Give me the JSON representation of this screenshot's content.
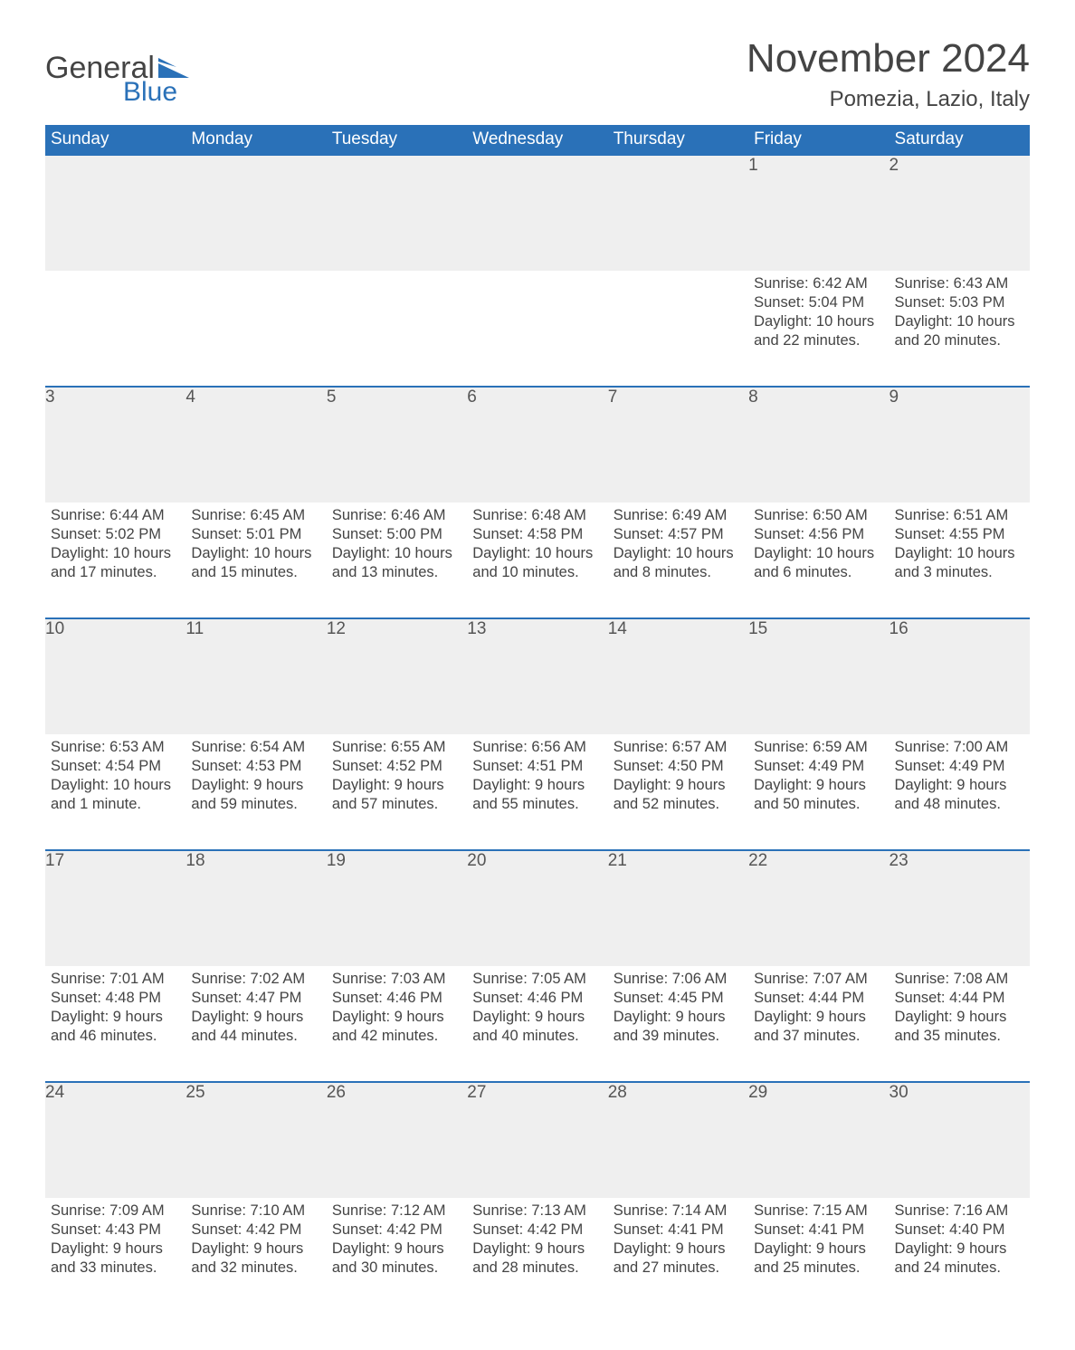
{
  "logo": {
    "part1": "General",
    "part2": "Blue"
  },
  "title": "November 2024",
  "location": "Pomezia, Lazio, Italy",
  "colors": {
    "header_bg": "#2a71b8",
    "header_fg": "#ffffff",
    "daynum_bg": "#efefef",
    "row_border": "#2a71b8",
    "text": "#444444",
    "logo_blue": "#2a71b8"
  },
  "typography": {
    "title_fontsize": 44,
    "location_fontsize": 24,
    "weekday_fontsize": 19,
    "daynum_fontsize": 19,
    "body_fontsize": 16.5
  },
  "calendar": {
    "type": "table",
    "columns": [
      "Sunday",
      "Monday",
      "Tuesday",
      "Wednesday",
      "Thursday",
      "Friday",
      "Saturday"
    ],
    "weeks": [
      [
        null,
        null,
        null,
        null,
        null,
        {
          "day": "1",
          "sunrise": "6:42 AM",
          "sunset": "5:04 PM",
          "daylight": "10 hours and 22 minutes."
        },
        {
          "day": "2",
          "sunrise": "6:43 AM",
          "sunset": "5:03 PM",
          "daylight": "10 hours and 20 minutes."
        }
      ],
      [
        {
          "day": "3",
          "sunrise": "6:44 AM",
          "sunset": "5:02 PM",
          "daylight": "10 hours and 17 minutes."
        },
        {
          "day": "4",
          "sunrise": "6:45 AM",
          "sunset": "5:01 PM",
          "daylight": "10 hours and 15 minutes."
        },
        {
          "day": "5",
          "sunrise": "6:46 AM",
          "sunset": "5:00 PM",
          "daylight": "10 hours and 13 minutes."
        },
        {
          "day": "6",
          "sunrise": "6:48 AM",
          "sunset": "4:58 PM",
          "daylight": "10 hours and 10 minutes."
        },
        {
          "day": "7",
          "sunrise": "6:49 AM",
          "sunset": "4:57 PM",
          "daylight": "10 hours and 8 minutes."
        },
        {
          "day": "8",
          "sunrise": "6:50 AM",
          "sunset": "4:56 PM",
          "daylight": "10 hours and 6 minutes."
        },
        {
          "day": "9",
          "sunrise": "6:51 AM",
          "sunset": "4:55 PM",
          "daylight": "10 hours and 3 minutes."
        }
      ],
      [
        {
          "day": "10",
          "sunrise": "6:53 AM",
          "sunset": "4:54 PM",
          "daylight": "10 hours and 1 minute."
        },
        {
          "day": "11",
          "sunrise": "6:54 AM",
          "sunset": "4:53 PM",
          "daylight": "9 hours and 59 minutes."
        },
        {
          "day": "12",
          "sunrise": "6:55 AM",
          "sunset": "4:52 PM",
          "daylight": "9 hours and 57 minutes."
        },
        {
          "day": "13",
          "sunrise": "6:56 AM",
          "sunset": "4:51 PM",
          "daylight": "9 hours and 55 minutes."
        },
        {
          "day": "14",
          "sunrise": "6:57 AM",
          "sunset": "4:50 PM",
          "daylight": "9 hours and 52 minutes."
        },
        {
          "day": "15",
          "sunrise": "6:59 AM",
          "sunset": "4:49 PM",
          "daylight": "9 hours and 50 minutes."
        },
        {
          "day": "16",
          "sunrise": "7:00 AM",
          "sunset": "4:49 PM",
          "daylight": "9 hours and 48 minutes."
        }
      ],
      [
        {
          "day": "17",
          "sunrise": "7:01 AM",
          "sunset": "4:48 PM",
          "daylight": "9 hours and 46 minutes."
        },
        {
          "day": "18",
          "sunrise": "7:02 AM",
          "sunset": "4:47 PM",
          "daylight": "9 hours and 44 minutes."
        },
        {
          "day": "19",
          "sunrise": "7:03 AM",
          "sunset": "4:46 PM",
          "daylight": "9 hours and 42 minutes."
        },
        {
          "day": "20",
          "sunrise": "7:05 AM",
          "sunset": "4:46 PM",
          "daylight": "9 hours and 40 minutes."
        },
        {
          "day": "21",
          "sunrise": "7:06 AM",
          "sunset": "4:45 PM",
          "daylight": "9 hours and 39 minutes."
        },
        {
          "day": "22",
          "sunrise": "7:07 AM",
          "sunset": "4:44 PM",
          "daylight": "9 hours and 37 minutes."
        },
        {
          "day": "23",
          "sunrise": "7:08 AM",
          "sunset": "4:44 PM",
          "daylight": "9 hours and 35 minutes."
        }
      ],
      [
        {
          "day": "24",
          "sunrise": "7:09 AM",
          "sunset": "4:43 PM",
          "daylight": "9 hours and 33 minutes."
        },
        {
          "day": "25",
          "sunrise": "7:10 AM",
          "sunset": "4:42 PM",
          "daylight": "9 hours and 32 minutes."
        },
        {
          "day": "26",
          "sunrise": "7:12 AM",
          "sunset": "4:42 PM",
          "daylight": "9 hours and 30 minutes."
        },
        {
          "day": "27",
          "sunrise": "7:13 AM",
          "sunset": "4:42 PM",
          "daylight": "9 hours and 28 minutes."
        },
        {
          "day": "28",
          "sunrise": "7:14 AM",
          "sunset": "4:41 PM",
          "daylight": "9 hours and 27 minutes."
        },
        {
          "day": "29",
          "sunrise": "7:15 AM",
          "sunset": "4:41 PM",
          "daylight": "9 hours and 25 minutes."
        },
        {
          "day": "30",
          "sunrise": "7:16 AM",
          "sunset": "4:40 PM",
          "daylight": "9 hours and 24 minutes."
        }
      ]
    ]
  },
  "labels": {
    "sunrise_prefix": "Sunrise: ",
    "sunset_prefix": "Sunset: ",
    "daylight_prefix": "Daylight: "
  }
}
